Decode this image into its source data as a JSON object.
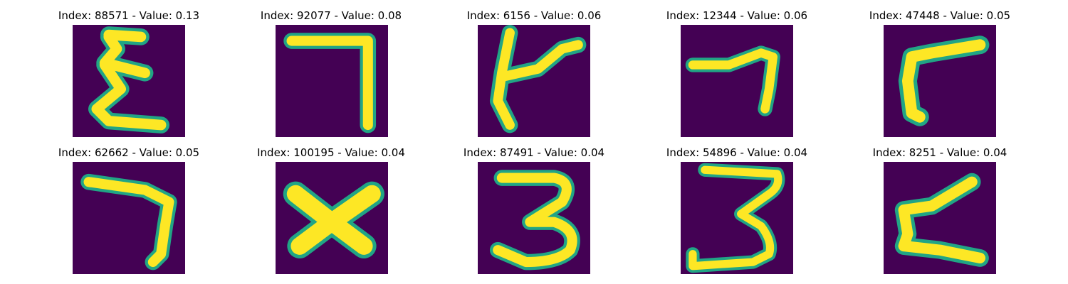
{
  "panels": [
    {
      "label": "Index: 88571 - Value: 0.13",
      "depicts": "digit-like stroke resembling a reversed '3' / epsilon"
    },
    {
      "label": "Index: 92077 - Value: 0.08",
      "depicts": "digit-like stroke resembling '7'"
    },
    {
      "label": "Index: 6156 - Value: 0.06",
      "depicts": "stroke resembling a 't' / cross shape"
    },
    {
      "label": "Index: 12344 - Value: 0.06",
      "depicts": "stroke resembling '7'"
    },
    {
      "label": "Index: 47448 - Value: 0.05",
      "depicts": "stroke resembling 'r' / 'Γ'"
    },
    {
      "label": "Index: 62662 - Value: 0.05",
      "depicts": "stroke resembling '7'"
    },
    {
      "label": "Index: 100195 - Value: 0.04",
      "depicts": "stroke resembling 'X'"
    },
    {
      "label": "Index: 87491 - Value: 0.04",
      "depicts": "stroke resembling '3'"
    },
    {
      "label": "Index: 54896 - Value: 0.04",
      "depicts": "stroke resembling '3'"
    },
    {
      "label": "Index: 8251 - Value: 0.04",
      "depicts": "stroke resembling a reversed 'z' / '2'"
    }
  ],
  "colors": {
    "background": "#440154",
    "stroke": "#fde725",
    "edge": "#21a585"
  }
}
